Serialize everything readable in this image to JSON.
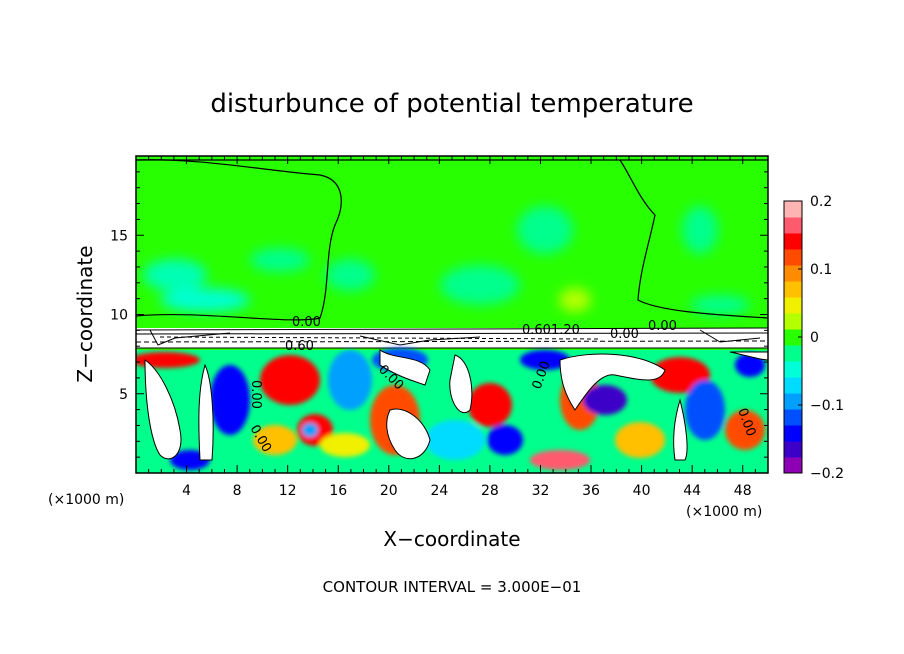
{
  "chart_data": {
    "type": "heatmap",
    "title": "disturbunce of potential temperature",
    "xlabel": "X−coordinate",
    "ylabel": "Z−coordinate",
    "x_unit": "(×1000 m)",
    "xlim": [
      0,
      50
    ],
    "ylim": [
      0,
      20
    ],
    "x_ticks": [
      "4",
      "8",
      "12",
      "16",
      "20",
      "24",
      "28",
      "32",
      "36",
      "40",
      "44",
      "48"
    ],
    "y_ticks": [
      "5",
      "10",
      "15"
    ],
    "footer": "CONTOUR INTERVAL = 3.000E−01",
    "colorbar": {
      "range": [
        -0.2,
        0.2
      ],
      "tick_labels": [
        "0.2",
        "0.1",
        "0",
        "−0.1",
        "−0.2"
      ],
      "colors": [
        "#8e00b4",
        "#3c00c8",
        "#0000ff",
        "#0050ff",
        "#00a0ff",
        "#00dcff",
        "#00ffd8",
        "#00ff8c",
        "#28ff00",
        "#b4ff00",
        "#f0f000",
        "#ffc000",
        "#ff8c00",
        "#ff4b00",
        "#ff0000",
        "#ff5a6e",
        "#ffb4b4"
      ]
    },
    "contour_labels": [
      "0.00",
      "0.60",
      "0.00",
      "0.00",
      "0.00",
      "0.00",
      "0.601.20",
      "0.00",
      "0.00",
      "0.00"
    ]
  }
}
